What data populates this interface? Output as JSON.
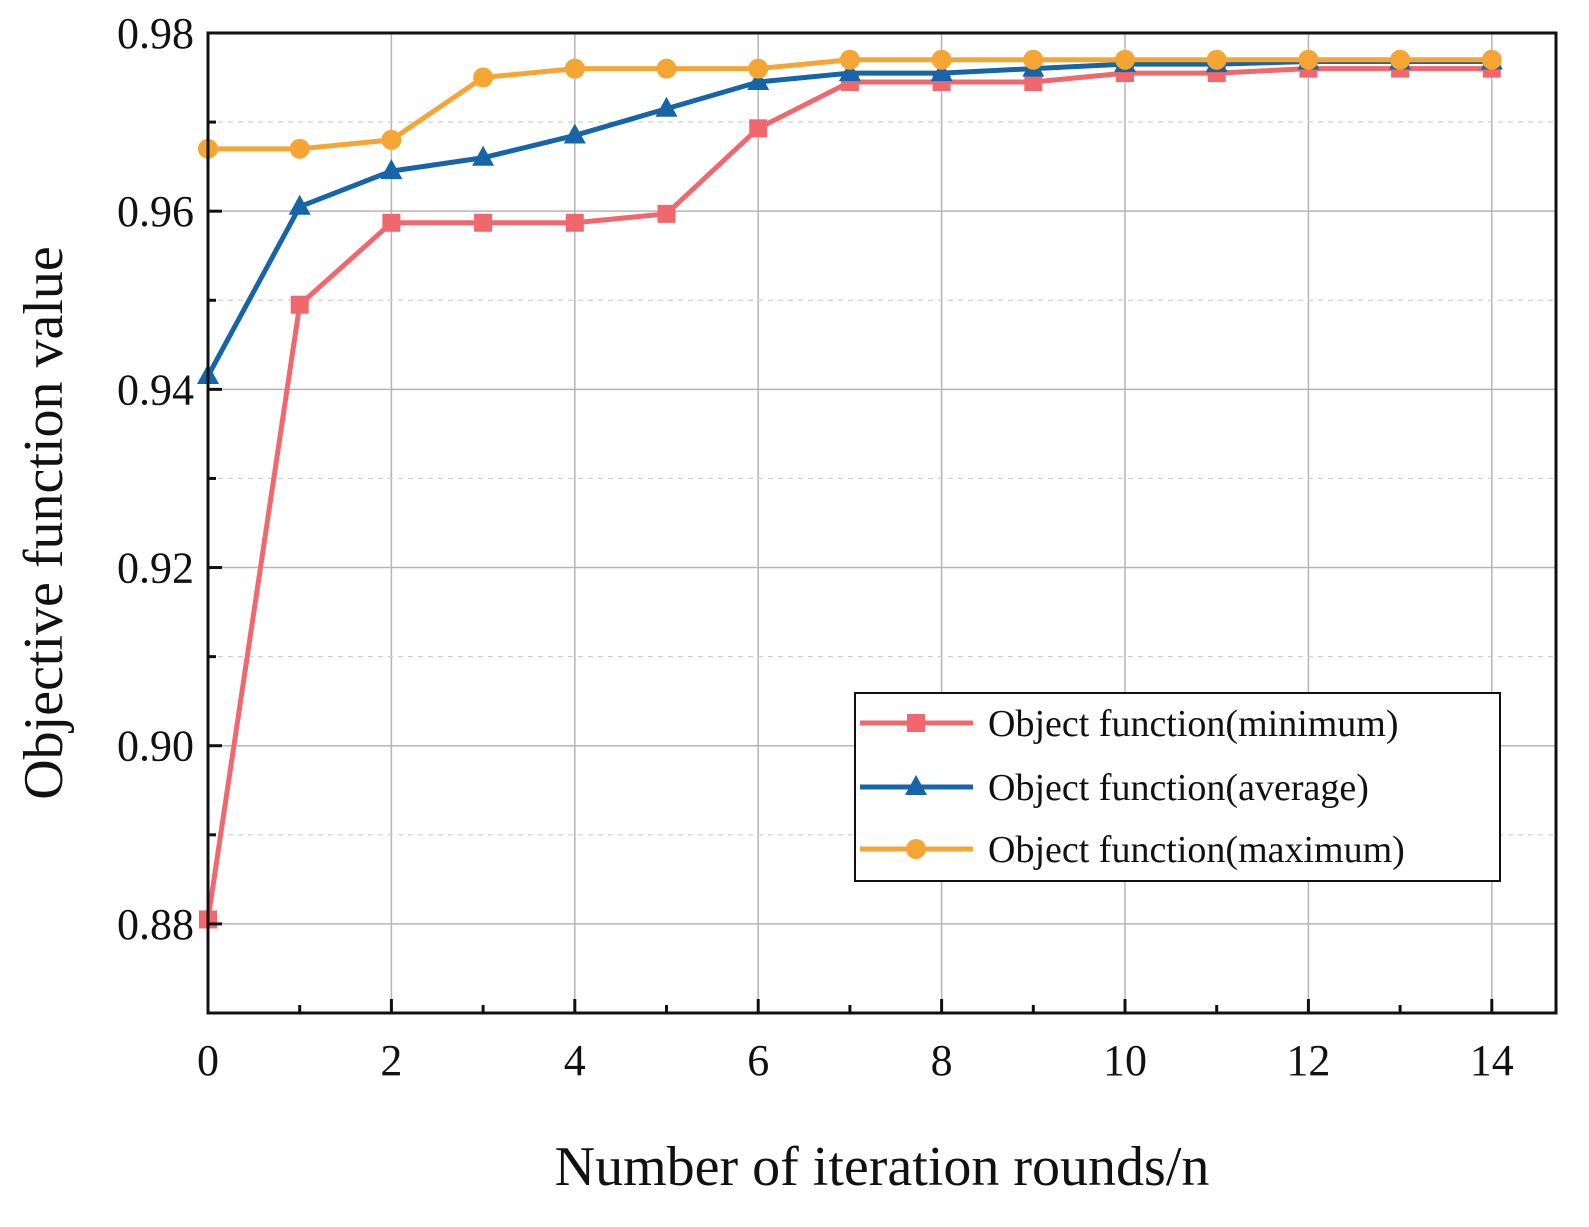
{
  "chart_data": {
    "type": "line",
    "title": "",
    "xlabel": "Number of iteration rounds/n",
    "ylabel": "Objective function value",
    "xlim": [
      0,
      14.7
    ],
    "ylim": [
      0.87,
      0.98
    ],
    "x_ticks": [
      0,
      2,
      4,
      6,
      8,
      10,
      12,
      14
    ],
    "x_tick_labels": [
      "0",
      "2",
      "4",
      "6",
      "8",
      "10",
      "12",
      "14"
    ],
    "y_ticks": [
      0.88,
      0.9,
      0.92,
      0.94,
      0.96,
      0.98
    ],
    "y_tick_labels": [
      "0.88",
      "0.90",
      "0.92",
      "0.94",
      "0.96",
      "0.98"
    ],
    "grid": true,
    "legend_position": "lower-right",
    "x": [
      0,
      1,
      2,
      3,
      4,
      5,
      6,
      7,
      8,
      9,
      10,
      11,
      12,
      13,
      14
    ],
    "series": [
      {
        "name": "Object function(minimum)",
        "color": "#f0686e",
        "marker": "square",
        "values": [
          0.8805,
          0.9495,
          0.9587,
          0.9587,
          0.9587,
          0.9597,
          0.9693,
          0.9745,
          0.9745,
          0.9745,
          0.9755,
          0.9755,
          0.976,
          0.976,
          0.976
        ]
      },
      {
        "name": "Object function(average)",
        "color": "#1565a8",
        "marker": "triangle",
        "values": [
          0.9415,
          0.9605,
          0.9645,
          0.966,
          0.9685,
          0.9715,
          0.9745,
          0.9755,
          0.9755,
          0.976,
          0.9765,
          0.9765,
          0.9768,
          0.9768,
          0.9768
        ]
      },
      {
        "name": "Object function(maximum)",
        "color": "#f5a534",
        "marker": "circle",
        "values": [
          0.967,
          0.967,
          0.968,
          0.975,
          0.976,
          0.976,
          0.976,
          0.977,
          0.977,
          0.977,
          0.977,
          0.977,
          0.977,
          0.977,
          0.977
        ]
      }
    ]
  }
}
